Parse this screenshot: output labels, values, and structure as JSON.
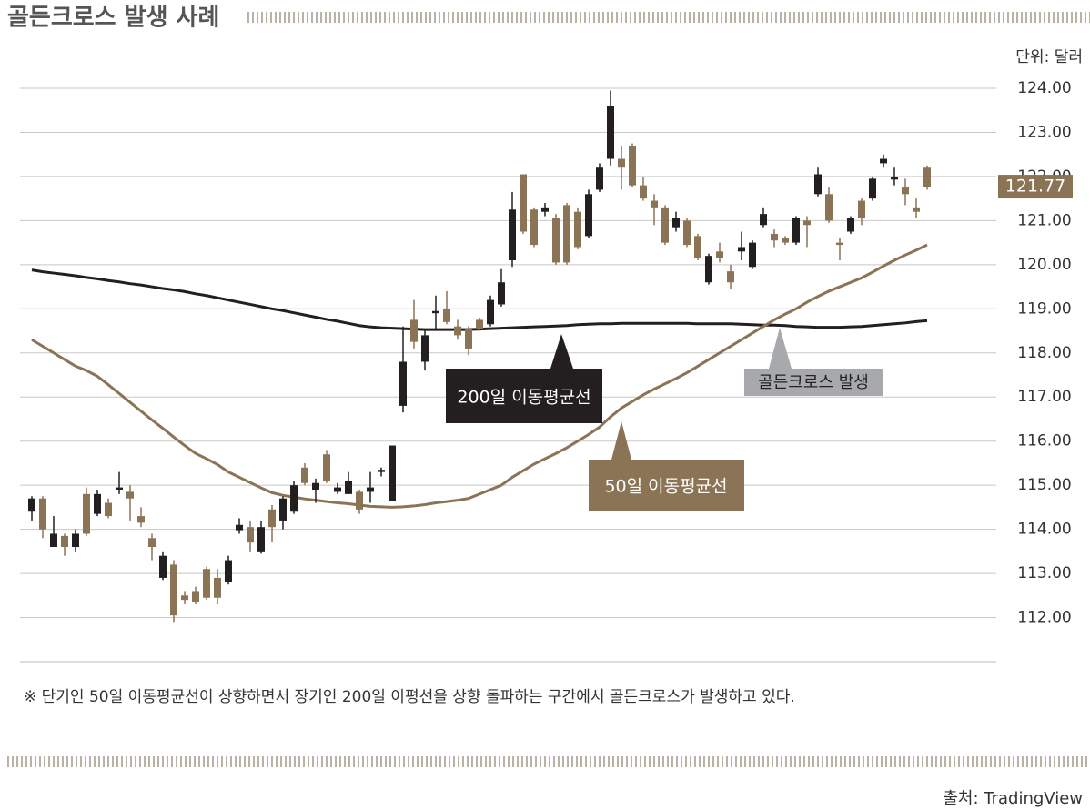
{
  "chart_data": {
    "type": "candlestick",
    "title": "골든크로스 발생 사례",
    "unit": "단위: 달러",
    "ylim": [
      111,
      124
    ],
    "yticks": [
      {
        "value": 112,
        "label": "112.00"
      },
      {
        "value": 113,
        "label": "113.00"
      },
      {
        "value": 114,
        "label": "114.00"
      },
      {
        "value": 115,
        "label": "115.00"
      },
      {
        "value": 116,
        "label": "116.00"
      },
      {
        "value": 117,
        "label": "117.00"
      },
      {
        "value": 118,
        "label": "118.00"
      },
      {
        "value": 119,
        "label": "119.00"
      },
      {
        "value": 120,
        "label": "120.00"
      },
      {
        "value": 121,
        "label": "121.00"
      },
      {
        "value": 122,
        "label": "122.00"
      },
      {
        "value": 123,
        "label": "123.00"
      },
      {
        "value": 124,
        "label": "124.00"
      }
    ],
    "grid": true,
    "up_color": "#231f20",
    "down_color": "#8b7355",
    "open": [
      114.4,
      114.7,
      113.6,
      113.85,
      113.6,
      114.8,
      114.35,
      114.6,
      114.9,
      114.85,
      114.3,
      113.8,
      112.9,
      113.2,
      112.5,
      112.6,
      113.1,
      112.9,
      112.8,
      113.98,
      114.05,
      113.5,
      114.45,
      114.2,
      114.4,
      115.4,
      114.9,
      115.7,
      114.85,
      114.8,
      114.85,
      114.85,
      115.3,
      114.65,
      116.8,
      118.75,
      117.8,
      118.9,
      119.0,
      118.6,
      118.55,
      118.75,
      118.65,
      119.1,
      120.1,
      122.05,
      121.25,
      121.2,
      121.05,
      121.35,
      121.2,
      120.65,
      121.7,
      122.4,
      122.4,
      122.7,
      121.8,
      121.45,
      121.3,
      120.85,
      121.0,
      120.65,
      119.6,
      120.3,
      119.85,
      120.3,
      119.95,
      120.9,
      120.7,
      120.6,
      120.5,
      121.0,
      121.6,
      121.6,
      120.5,
      120.75,
      121.45,
      121.5,
      122.3,
      121.93,
      121.75,
      121.3,
      122.2
    ],
    "high": [
      114.75,
      114.75,
      114.3,
      113.9,
      114.0,
      114.95,
      114.9,
      114.7,
      115.3,
      115.0,
      114.5,
      113.9,
      113.5,
      113.3,
      112.6,
      112.7,
      113.15,
      113.1,
      113.4,
      114.25,
      114.2,
      114.2,
      114.55,
      114.75,
      115.1,
      115.5,
      115.15,
      115.8,
      115.05,
      115.3,
      114.9,
      115.3,
      115.4,
      115.9,
      118.6,
      119.2,
      118.5,
      119.3,
      119.4,
      118.75,
      118.6,
      118.8,
      119.3,
      119.9,
      121.65,
      122.05,
      121.3,
      121.4,
      121.15,
      121.4,
      121.3,
      121.7,
      122.3,
      123.95,
      122.7,
      122.75,
      122.0,
      121.6,
      121.35,
      121.2,
      121.05,
      120.7,
      120.25,
      120.5,
      120.0,
      120.75,
      120.55,
      121.3,
      120.8,
      120.65,
      121.1,
      121.1,
      122.2,
      121.75,
      120.6,
      121.1,
      121.5,
      122.0,
      122.5,
      122.2,
      121.95,
      121.5,
      122.25
    ],
    "low": [
      114.2,
      113.8,
      113.6,
      113.4,
      113.5,
      113.85,
      114.3,
      114.25,
      114.8,
      114.2,
      114.05,
      113.3,
      112.85,
      111.9,
      112.3,
      112.3,
      112.4,
      112.3,
      112.75,
      113.9,
      113.5,
      113.45,
      113.7,
      114.0,
      114.35,
      115.0,
      114.6,
      115.05,
      114.8,
      114.8,
      114.35,
      114.6,
      115.2,
      114.65,
      116.65,
      118.1,
      117.6,
      118.5,
      118.65,
      118.3,
      117.95,
      118.5,
      118.6,
      119.05,
      119.95,
      120.7,
      120.4,
      121.1,
      120.0,
      120.0,
      120.35,
      120.6,
      121.65,
      122.25,
      121.7,
      121.75,
      121.45,
      120.9,
      120.45,
      120.75,
      120.4,
      120.1,
      119.55,
      120.05,
      119.45,
      120.1,
      119.9,
      120.85,
      120.4,
      120.45,
      120.45,
      120.4,
      121.55,
      120.95,
      120.1,
      120.7,
      120.9,
      121.45,
      122.2,
      121.8,
      121.35,
      121.05,
      121.7
    ],
    "close": [
      114.7,
      114.0,
      113.9,
      113.6,
      113.9,
      113.9,
      114.8,
      114.3,
      114.95,
      114.7,
      114.15,
      113.6,
      113.4,
      112.05,
      112.4,
      112.35,
      112.45,
      112.45,
      113.3,
      114.1,
      113.7,
      114.05,
      114.05,
      114.7,
      115.0,
      115.05,
      115.05,
      115.1,
      114.95,
      115.1,
      114.45,
      114.95,
      115.35,
      115.9,
      117.8,
      118.25,
      118.4,
      118.95,
      118.7,
      118.4,
      118.1,
      118.55,
      119.2,
      119.6,
      121.25,
      120.75,
      120.45,
      121.3,
      120.05,
      120.05,
      120.4,
      121.6,
      122.2,
      123.6,
      122.2,
      121.8,
      121.5,
      121.3,
      120.5,
      121.05,
      120.45,
      120.15,
      120.2,
      120.15,
      119.6,
      120.4,
      120.5,
      121.15,
      120.55,
      120.5,
      121.05,
      120.9,
      122.05,
      121.0,
      120.45,
      121.05,
      121.05,
      121.95,
      122.4,
      121.98,
      121.6,
      121.2,
      121.77
    ],
    "moving_averages": [
      {
        "label": "200일 이동평균선",
        "color": "#231f20",
        "values": [
          119.88,
          119.84,
          119.81,
          119.78,
          119.75,
          119.71,
          119.68,
          119.64,
          119.61,
          119.57,
          119.54,
          119.5,
          119.46,
          119.43,
          119.39,
          119.34,
          119.3,
          119.25,
          119.2,
          119.15,
          119.1,
          119.05,
          119.0,
          118.96,
          118.91,
          118.86,
          118.81,
          118.76,
          118.72,
          118.67,
          118.62,
          118.59,
          118.57,
          118.56,
          118.55,
          118.54,
          118.53,
          118.53,
          118.53,
          118.53,
          118.53,
          118.54,
          118.55,
          118.56,
          118.57,
          118.58,
          118.59,
          118.6,
          118.61,
          118.62,
          118.64,
          118.65,
          118.66,
          118.66,
          118.67,
          118.67,
          118.67,
          118.67,
          118.67,
          118.67,
          118.67,
          118.66,
          118.66,
          118.66,
          118.66,
          118.65,
          118.64,
          118.63,
          118.63,
          118.62,
          118.6,
          118.59,
          118.58,
          118.58,
          118.58,
          118.59,
          118.6,
          118.62,
          118.64,
          118.66,
          118.68,
          118.71,
          118.73
        ]
      },
      {
        "label": "50일 이동평균선",
        "color": "#8b7355",
        "values": [
          118.3,
          118.15,
          118.0,
          117.85,
          117.7,
          117.6,
          117.47,
          117.28,
          117.08,
          116.88,
          116.68,
          116.48,
          116.29,
          116.09,
          115.9,
          115.72,
          115.6,
          115.47,
          115.3,
          115.18,
          115.06,
          114.94,
          114.83,
          114.77,
          114.73,
          114.69,
          114.66,
          114.63,
          114.6,
          114.58,
          114.55,
          114.52,
          114.51,
          114.5,
          114.51,
          114.53,
          114.56,
          114.6,
          114.63,
          114.66,
          114.7,
          114.8,
          114.9,
          115.0,
          115.18,
          115.33,
          115.48,
          115.6,
          115.72,
          115.85,
          116.0,
          116.15,
          116.32,
          116.55,
          116.75,
          116.9,
          117.05,
          117.18,
          117.3,
          117.42,
          117.55,
          117.7,
          117.85,
          118.0,
          118.15,
          118.3,
          118.45,
          118.6,
          118.75,
          118.88,
          119.0,
          119.15,
          119.28,
          119.4,
          119.5,
          119.6,
          119.7,
          119.83,
          119.97,
          120.1,
          120.22,
          120.33,
          120.45
        ]
      }
    ],
    "last_price": 121.77,
    "annotation": "골든크로스 발생",
    "note": "※ 단기인 50일 이동평균선이 상향하면서 장기인 200일 이평선을 상향 돌파하는 구간에서 골든크로스가 발생하고 있다.",
    "source": "출처: TradingView"
  }
}
